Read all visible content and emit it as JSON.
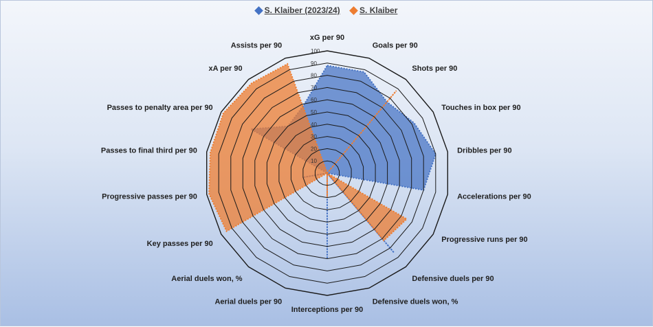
{
  "chart_data": {
    "type": "radar",
    "axes": [
      "xG per 90",
      "Goals per 90",
      "Shots per 90",
      "Touches in box per 90",
      "Dribbles per 90",
      "Accelerations per 90",
      "Progressive runs per 90",
      "Defensive duels per 90",
      "Defensive duels won, %",
      "Interceptions per 90",
      "Aerial duels per 90",
      "Aerial duels won, %",
      "Key passes per 90",
      "Progressive passes per 90",
      "Passes to final third per 90",
      "Passes to penalty area per 90",
      "xA per 90",
      "Assists per 90"
    ],
    "ticks": [
      "10",
      "20",
      "30",
      "40",
      "50",
      "60",
      "70",
      "80",
      "90",
      "100"
    ],
    "rlim": [
      0,
      100
    ],
    "series": [
      {
        "name": "S. Klaiber (2023/24)",
        "color": "#4472c4",
        "values": [
          88,
          88,
          76,
          82,
          90,
          80,
          0,
          85,
          0,
          70,
          0,
          0,
          0,
          20,
          0,
          72,
          50,
          58
        ]
      },
      {
        "name": "S. Klaiber",
        "color": "#ed7d31",
        "values": [
          0,
          0,
          88,
          0,
          0,
          0,
          75,
          72,
          0,
          20,
          0,
          0,
          95,
          98,
          97,
          98,
          96,
          95
        ]
      }
    ],
    "legend_position": "top"
  }
}
